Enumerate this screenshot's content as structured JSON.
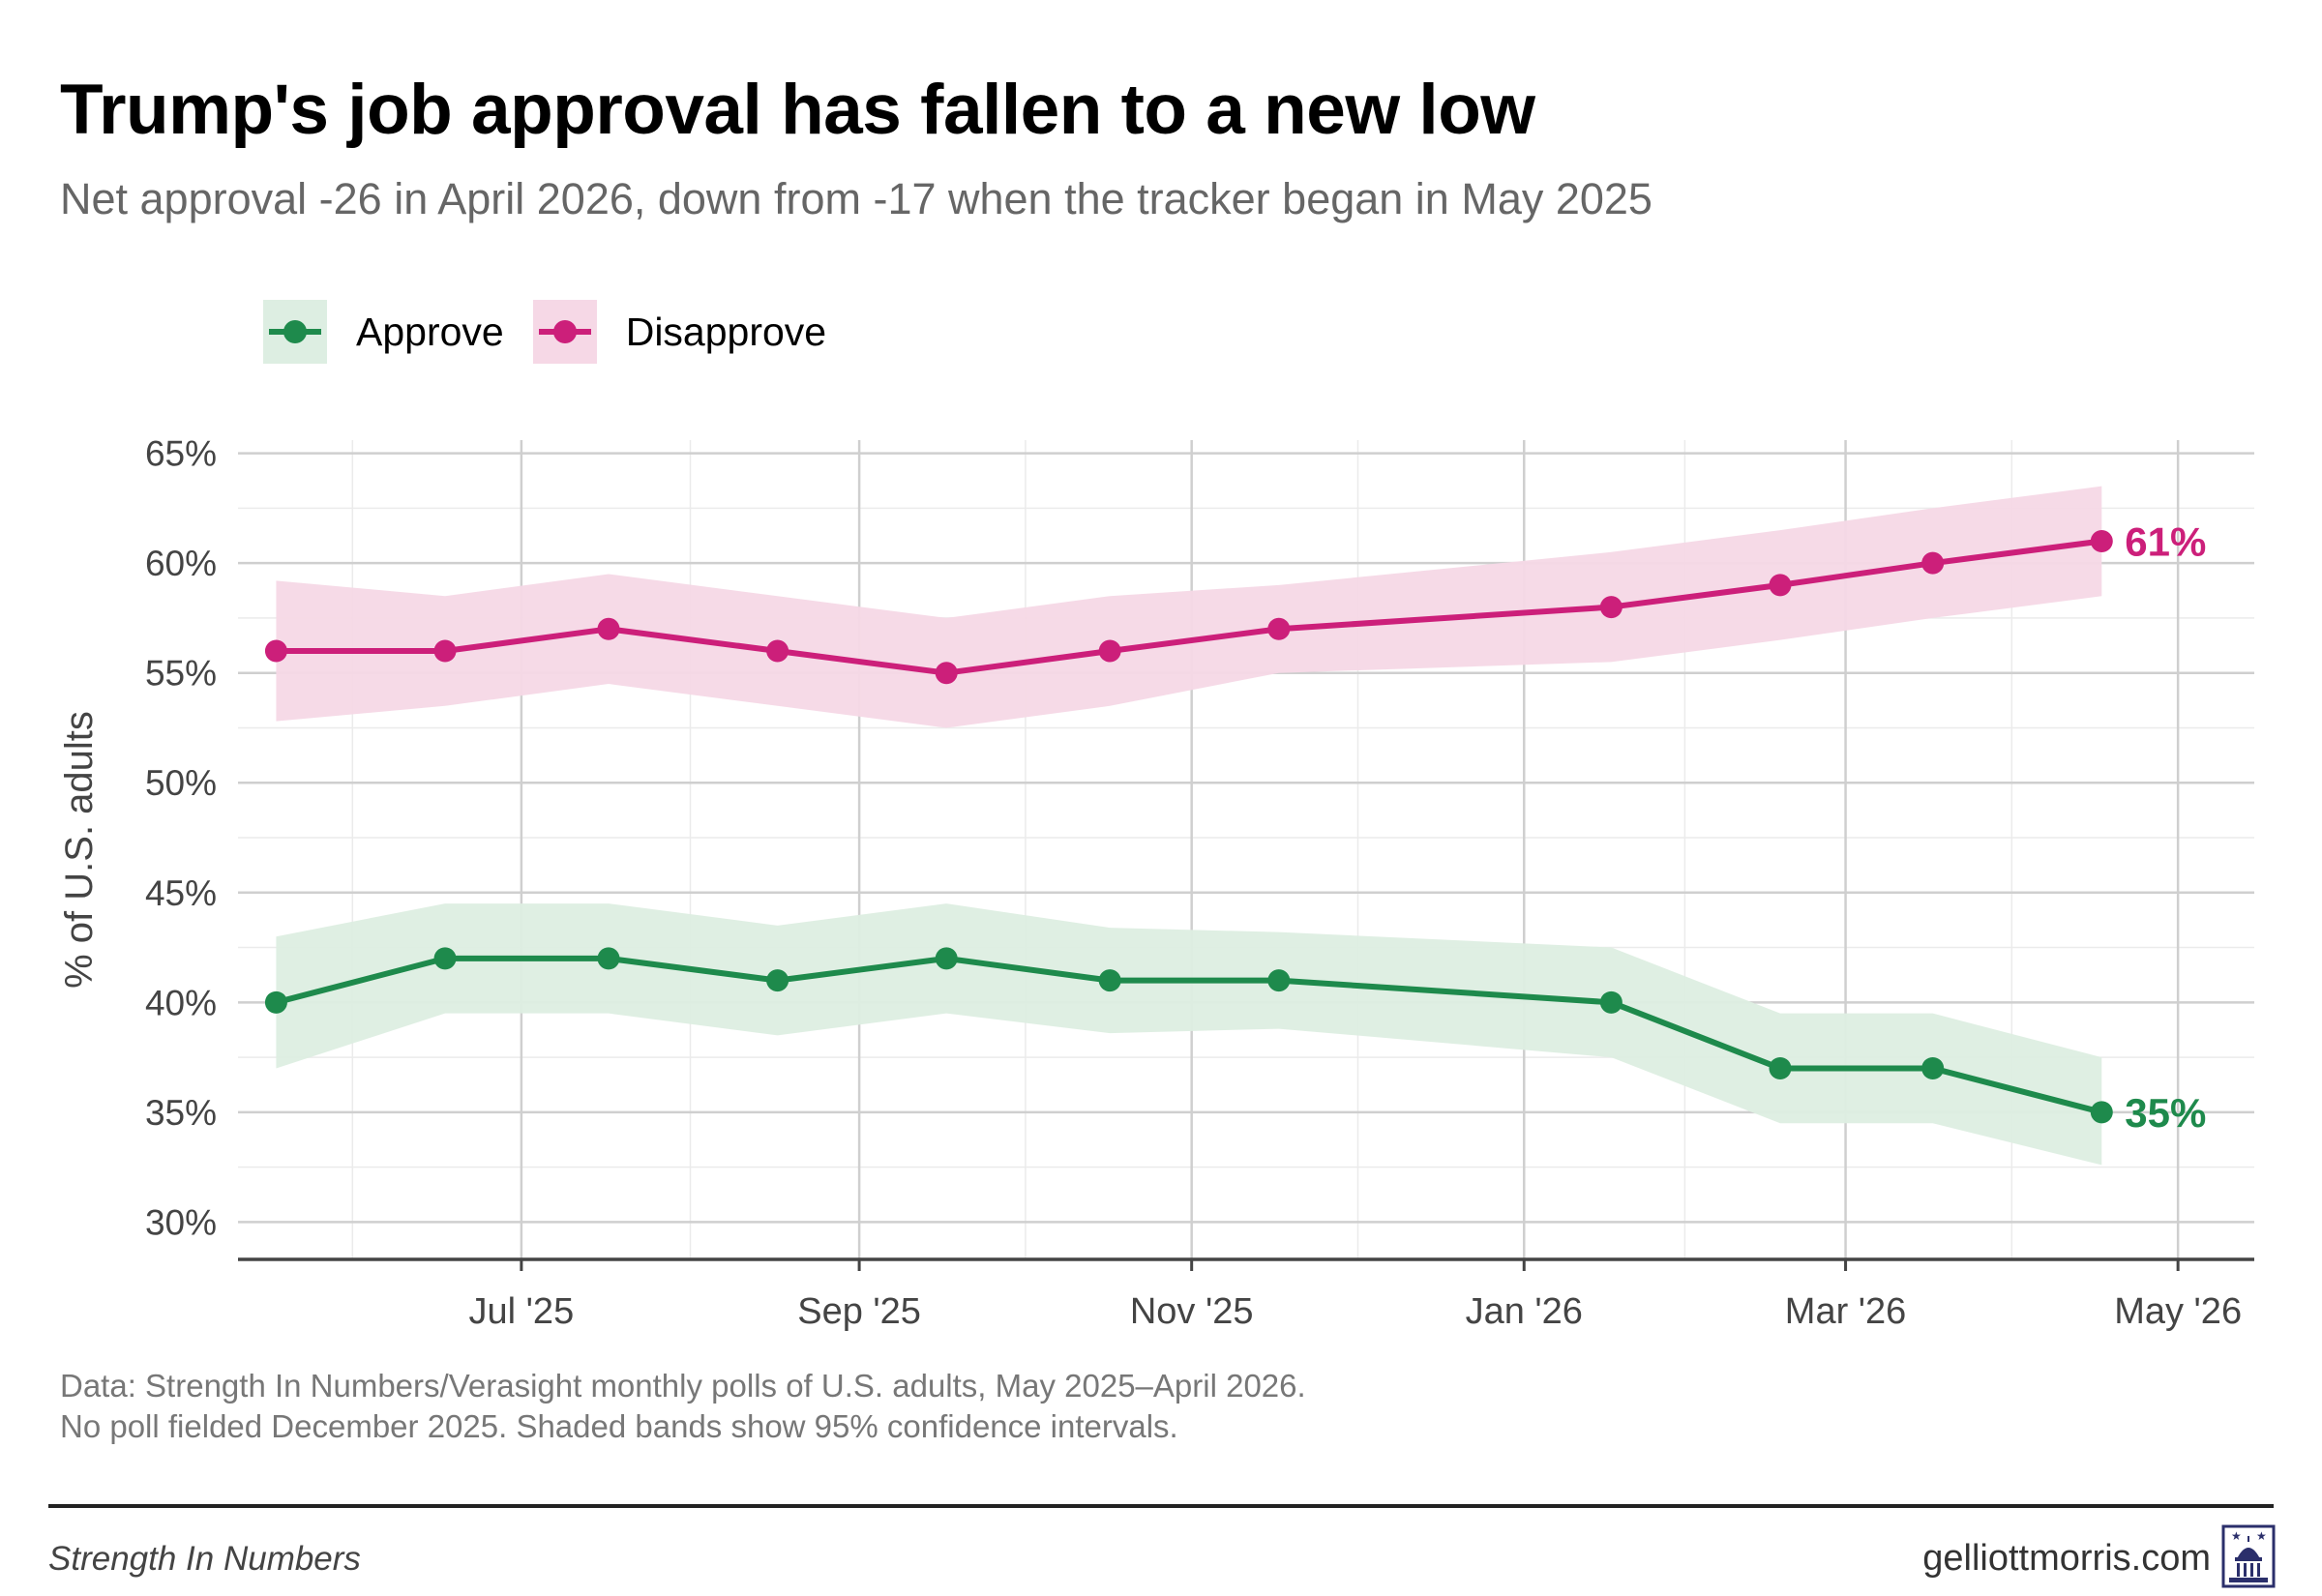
{
  "title": "Trump's job approval has fallen to a new low",
  "subtitle": "Net approval -26 in April 2026, down from -17 when the tracker began in May 2025",
  "legend": {
    "approve": "Approve",
    "disapprove": "Disapprove"
  },
  "colors": {
    "approve": "#1e8a4c",
    "disapprove": "#cc1f7a",
    "approve_band": "#ddeee2",
    "disapprove_band": "#f6d8e6"
  },
  "caption": {
    "line1": "Data: Strength In Numbers/Verasight monthly polls of U.S. adults, May 2025–April 2026.",
    "line2": "No poll fielded December 2025. Shaded bands show 95% confidence intervals."
  },
  "footer": {
    "left": "Strength In Numbers",
    "right": "gelliottmorris.com",
    "logo_icon": "capitol-dome-icon"
  },
  "chart_data": {
    "type": "line",
    "ylabel": "% of U.S. adults",
    "ylim": [
      28.3,
      65.6
    ],
    "yticks": [
      30,
      35,
      40,
      45,
      50,
      55,
      60,
      65
    ],
    "ytick_labels": [
      "30%",
      "35%",
      "40%",
      "45%",
      "50%",
      "55%",
      "60%",
      "65%"
    ],
    "xlim": [
      "2025-05-10",
      "2026-05-15"
    ],
    "xticks": [
      "2025-07-01",
      "2025-09-01",
      "2025-11-01",
      "2026-01-01",
      "2026-03-01",
      "2026-05-01"
    ],
    "xtick_labels": [
      "Jul '25",
      "Sep '25",
      "Nov '25",
      "Jan '26",
      "Mar '26",
      "May '26"
    ],
    "dates": [
      "2025-05-17",
      "2025-06-17",
      "2025-07-17",
      "2025-08-17",
      "2025-09-17",
      "2025-10-17",
      "2025-11-17",
      "2026-01-17",
      "2026-02-17",
      "2026-03-17",
      "2026-04-17"
    ],
    "series": [
      {
        "name": "Approve",
        "key": "approve",
        "values": [
          40,
          42,
          42,
          41,
          42,
          41,
          41,
          40,
          37,
          37,
          35
        ],
        "lower": [
          37,
          39.5,
          39.5,
          38.5,
          39.5,
          38.6,
          38.8,
          37.5,
          34.5,
          34.5,
          32.6
        ],
        "upper": [
          43,
          44.5,
          44.5,
          43.5,
          44.5,
          43.4,
          43.2,
          42.5,
          39.5,
          39.5,
          37.5
        ],
        "end_label": "35%"
      },
      {
        "name": "Disapprove",
        "key": "disapprove",
        "values": [
          56,
          56,
          57,
          56,
          55,
          56,
          57,
          58,
          59,
          60,
          61
        ],
        "lower": [
          52.8,
          53.5,
          54.5,
          53.5,
          52.5,
          53.5,
          55,
          55.5,
          56.5,
          57.5,
          58.5
        ],
        "upper": [
          59.2,
          58.5,
          59.5,
          58.5,
          57.5,
          58.5,
          59,
          60.5,
          61.5,
          62.5,
          63.5
        ],
        "end_label": "61%"
      }
    ]
  }
}
